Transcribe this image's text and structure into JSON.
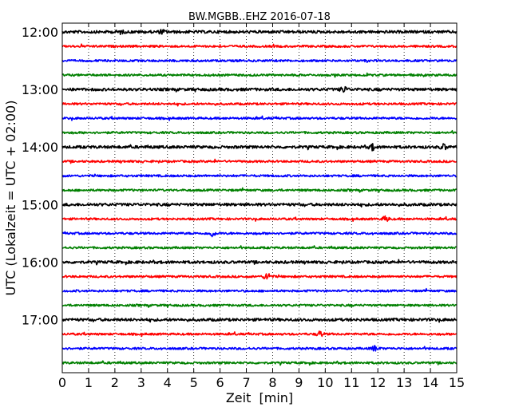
{
  "chart_data": {
    "type": "line",
    "title": "BW.MGBB..EHZ 2016-07-18",
    "xlabel": "Zeit  [min]",
    "ylabel": "UTC (Lokalzeit = UTC + 02:00)",
    "xlim": [
      0,
      15
    ],
    "x_ticks": [
      "0",
      "1",
      "2",
      "3",
      "4",
      "5",
      "6",
      "7",
      "8",
      "9",
      "10",
      "11",
      "12",
      "13",
      "14",
      "15"
    ],
    "y_ticks": [
      "12:00",
      "13:00",
      "14:00",
      "15:00",
      "16:00",
      "17:00"
    ],
    "grid": "vertical dotted",
    "trace_start_times": [
      "12:00",
      "12:15",
      "12:30",
      "12:45",
      "13:00",
      "13:15",
      "13:30",
      "13:45",
      "14:00",
      "14:15",
      "14:30",
      "14:45",
      "15:00",
      "15:15",
      "15:30",
      "15:45",
      "16:00",
      "16:15",
      "16:30",
      "16:45",
      "17:00",
      "17:15",
      "17:30",
      "17:45"
    ],
    "trace_colors": [
      "#000000",
      "#ff0000",
      "#0000ff",
      "#008000"
    ],
    "events": [
      {
        "trace": "16:15",
        "minute": 7.8,
        "level": "strong"
      },
      {
        "trace": "15:15",
        "minute": 12.3,
        "level": "moderate"
      },
      {
        "trace": "17:30",
        "minute": 11.9,
        "level": "moderate"
      },
      {
        "trace": "17:15",
        "minute": 9.8,
        "level": "moderate"
      },
      {
        "trace": "13:00",
        "minute": 10.7,
        "level": "moderate"
      },
      {
        "trace": "14:00",
        "minute": 11.8,
        "level": "moderate"
      },
      {
        "trace": "14:00",
        "minute": 14.5,
        "level": "moderate"
      },
      {
        "trace": "15:30",
        "minute": 5.7,
        "level": "moderate"
      },
      {
        "trace": "12:00",
        "minute": 2.2,
        "level": "noise"
      },
      {
        "trace": "12:00",
        "minute": 3.8,
        "level": "noise"
      }
    ]
  }
}
